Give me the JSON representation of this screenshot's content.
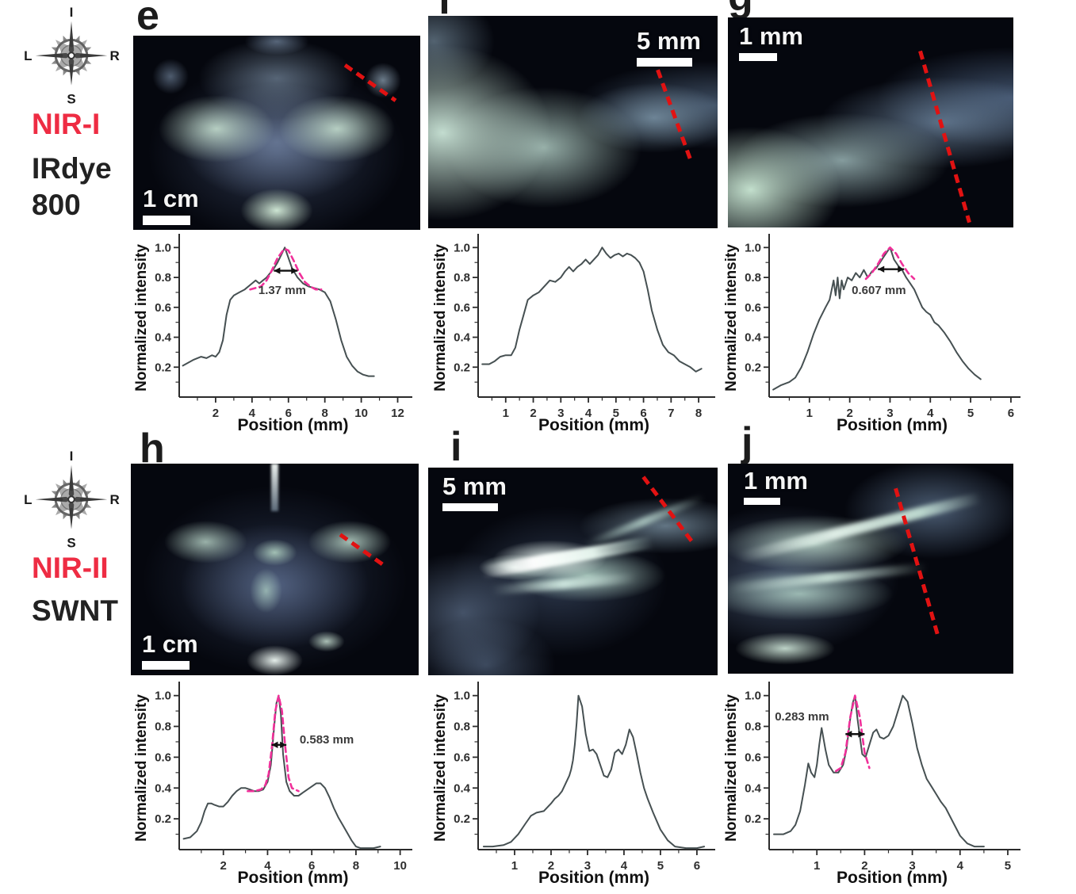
{
  "palette": {
    "nir_red": "#ee2c43",
    "dash_red": "#e11212",
    "fit_pink": "#f0309a",
    "curve_gray": "#465052",
    "axis_black": "#2b2b2b"
  },
  "groups": [
    {
      "id": "nir1",
      "compass": {
        "top": "I",
        "right": "R",
        "bottom": "S",
        "left": "L"
      },
      "modality_label": "NIR-I",
      "probe_label": "IRdye\n800",
      "panels": [
        {
          "letter": "e",
          "scalebar": "1 cm"
        },
        {
          "letter": "f",
          "scalebar": "5 mm"
        },
        {
          "letter": "g",
          "scalebar": "1 mm"
        }
      ]
    },
    {
      "id": "nir2",
      "compass": {
        "top": "I",
        "right": "R",
        "bottom": "S",
        "left": "L"
      },
      "modality_label": "NIR-II",
      "probe_label": "SWNT",
      "panels": [
        {
          "letter": "h",
          "scalebar": "1 cm"
        },
        {
          "letter": "i",
          "scalebar": "5 mm"
        },
        {
          "letter": "j",
          "scalebar": "1 mm"
        }
      ]
    }
  ],
  "chart_data": [
    {
      "id": "plot_e",
      "type": "line",
      "title": "",
      "xlabel": "Position (mm)",
      "ylabel": "Normalized intensity",
      "xlim": [
        0,
        12.5
      ],
      "ylim": [
        0,
        1.06
      ],
      "xticks": [
        2,
        4,
        6,
        8,
        10,
        12
      ],
      "yticks": [
        0.2,
        0.4,
        0.6,
        0.8,
        1.0
      ],
      "grid": false,
      "annotation": {
        "text": "1.37 mm",
        "x": 4.35,
        "y": 0.69,
        "arrow": {
          "x1": 5.2,
          "x2": 6.5,
          "y": 0.845
        }
      },
      "series": [
        {
          "name": "intensity_profile",
          "color": "#465052",
          "width": 2,
          "x": [
            0.2,
            0.8,
            1.2,
            1.5,
            1.8,
            2.0,
            2.2,
            2.4,
            2.6,
            2.8,
            3.0,
            3.3,
            3.6,
            4.0,
            4.2,
            4.4,
            4.6,
            4.8,
            5.0,
            5.2,
            5.4,
            5.6,
            5.8,
            6.0,
            6.2,
            6.5,
            6.8,
            7.1,
            7.4,
            7.7,
            8.0,
            8.3,
            8.6,
            8.9,
            9.2,
            9.5,
            9.8,
            10.1,
            10.4,
            10.7
          ],
          "y": [
            0.21,
            0.25,
            0.27,
            0.26,
            0.28,
            0.27,
            0.3,
            0.38,
            0.55,
            0.65,
            0.68,
            0.7,
            0.72,
            0.76,
            0.78,
            0.76,
            0.78,
            0.8,
            0.83,
            0.86,
            0.9,
            0.95,
            1.0,
            0.93,
            0.86,
            0.8,
            0.76,
            0.74,
            0.73,
            0.72,
            0.7,
            0.64,
            0.52,
            0.38,
            0.27,
            0.21,
            0.17,
            0.15,
            0.14,
            0.14
          ]
        },
        {
          "name": "gaussian_fit",
          "color": "#f0309a",
          "width": 2.6,
          "dashed": true,
          "x": [
            3.9,
            4.2,
            4.5,
            4.8,
            5.1,
            5.4,
            5.7,
            5.82,
            6.0,
            6.3,
            6.6,
            6.9,
            7.2,
            7.5,
            7.8
          ],
          "y": [
            0.72,
            0.73,
            0.74,
            0.78,
            0.85,
            0.93,
            0.98,
            0.99,
            0.98,
            0.91,
            0.83,
            0.77,
            0.74,
            0.72,
            0.72
          ]
        }
      ]
    },
    {
      "id": "plot_f",
      "type": "line",
      "title": "",
      "xlabel": "Position (mm)",
      "ylabel": "Normalized intensity",
      "xlim": [
        0,
        8.4
      ],
      "ylim": [
        0,
        1.06
      ],
      "xticks": [
        1,
        2,
        3,
        4,
        5,
        6,
        7,
        8
      ],
      "yticks": [
        0.2,
        0.4,
        0.6,
        0.8,
        1.0
      ],
      "grid": false,
      "series": [
        {
          "name": "intensity_profile",
          "color": "#465052",
          "width": 2,
          "x": [
            0.15,
            0.4,
            0.6,
            0.8,
            1.0,
            1.2,
            1.35,
            1.5,
            1.65,
            1.8,
            2.0,
            2.2,
            2.4,
            2.6,
            2.8,
            3.0,
            3.15,
            3.3,
            3.45,
            3.6,
            3.75,
            3.9,
            4.05,
            4.2,
            4.35,
            4.5,
            4.65,
            4.8,
            4.95,
            5.1,
            5.25,
            5.4,
            5.55,
            5.7,
            5.85,
            6.0,
            6.15,
            6.3,
            6.5,
            6.7,
            6.9,
            7.1,
            7.3,
            7.5,
            7.7,
            7.9,
            8.1
          ],
          "y": [
            0.22,
            0.22,
            0.24,
            0.27,
            0.28,
            0.28,
            0.33,
            0.45,
            0.55,
            0.65,
            0.68,
            0.7,
            0.74,
            0.78,
            0.77,
            0.8,
            0.84,
            0.87,
            0.84,
            0.87,
            0.89,
            0.92,
            0.89,
            0.92,
            0.95,
            1.0,
            0.96,
            0.93,
            0.95,
            0.96,
            0.94,
            0.96,
            0.95,
            0.93,
            0.9,
            0.84,
            0.72,
            0.58,
            0.45,
            0.35,
            0.3,
            0.28,
            0.24,
            0.22,
            0.2,
            0.17,
            0.19
          ]
        }
      ]
    },
    {
      "id": "plot_g",
      "type": "line",
      "title": "",
      "xlabel": "Position (mm)",
      "ylabel": "Normalized intensity",
      "xlim": [
        0,
        6.1
      ],
      "ylim": [
        0,
        1.06
      ],
      "xticks": [
        1,
        2,
        3,
        4,
        5,
        6
      ],
      "yticks": [
        0.2,
        0.4,
        0.6,
        0.8,
        1.0
      ],
      "grid": false,
      "annotation": {
        "text": "0.607 mm",
        "x": 2.05,
        "y": 0.69,
        "arrow": {
          "x1": 2.7,
          "x2": 3.35,
          "y": 0.855
        }
      },
      "series": [
        {
          "name": "intensity_profile",
          "color": "#465052",
          "width": 2,
          "x": [
            0.1,
            0.3,
            0.5,
            0.65,
            0.8,
            0.95,
            1.1,
            1.25,
            1.4,
            1.5,
            1.6,
            1.65,
            1.7,
            1.75,
            1.8,
            1.85,
            1.95,
            2.05,
            2.15,
            2.25,
            2.35,
            2.45,
            2.55,
            2.65,
            2.75,
            2.85,
            2.95,
            3.0,
            3.1,
            3.2,
            3.3,
            3.4,
            3.5,
            3.6,
            3.7,
            3.8,
            3.9,
            4.0,
            4.1,
            4.2,
            4.35,
            4.5,
            4.65,
            4.8,
            4.95,
            5.1,
            5.25
          ],
          "y": [
            0.05,
            0.08,
            0.1,
            0.13,
            0.2,
            0.3,
            0.42,
            0.52,
            0.6,
            0.65,
            0.78,
            0.68,
            0.8,
            0.66,
            0.78,
            0.72,
            0.8,
            0.78,
            0.83,
            0.8,
            0.85,
            0.8,
            0.84,
            0.86,
            0.9,
            0.94,
            0.98,
            1.0,
            0.92,
            0.88,
            0.85,
            0.8,
            0.76,
            0.72,
            0.66,
            0.6,
            0.57,
            0.55,
            0.5,
            0.48,
            0.43,
            0.37,
            0.3,
            0.24,
            0.19,
            0.15,
            0.12
          ]
        },
        {
          "name": "gaussian_fit",
          "color": "#f0309a",
          "width": 2.6,
          "dashed": true,
          "x": [
            2.4,
            2.55,
            2.7,
            2.85,
            3.0,
            3.15,
            3.3,
            3.45,
            3.6
          ],
          "y": [
            0.79,
            0.83,
            0.89,
            0.96,
            1.0,
            0.96,
            0.89,
            0.83,
            0.79
          ]
        }
      ]
    },
    {
      "id": "plot_h",
      "type": "line",
      "title": "",
      "xlabel": "Position (mm)",
      "ylabel": "Normalized intensity",
      "xlim": [
        0,
        10.3
      ],
      "ylim": [
        0,
        1.06
      ],
      "xticks": [
        2,
        4,
        6,
        8,
        10
      ],
      "yticks": [
        0.2,
        0.4,
        0.6,
        0.8,
        1.0
      ],
      "grid": false,
      "annotation": {
        "text": "0.583 mm",
        "x": 5.45,
        "y": 0.69,
        "arrow": {
          "x1": 4.18,
          "x2": 4.85,
          "y": 0.68
        }
      },
      "series": [
        {
          "name": "intensity_profile",
          "color": "#465052",
          "width": 2,
          "x": [
            0.2,
            0.5,
            0.8,
            1.0,
            1.15,
            1.3,
            1.45,
            1.6,
            1.8,
            2.0,
            2.2,
            2.4,
            2.6,
            2.8,
            3.0,
            3.2,
            3.4,
            3.6,
            3.8,
            4.0,
            4.15,
            4.3,
            4.4,
            4.5,
            4.6,
            4.7,
            4.85,
            5.0,
            5.2,
            5.4,
            5.6,
            5.8,
            6.0,
            6.2,
            6.4,
            6.6,
            6.8,
            7.0,
            7.2,
            7.4,
            7.6,
            7.8,
            8.0,
            8.2,
            8.5,
            8.8,
            9.1
          ],
          "y": [
            0.07,
            0.08,
            0.12,
            0.18,
            0.25,
            0.3,
            0.3,
            0.29,
            0.28,
            0.28,
            0.31,
            0.35,
            0.38,
            0.4,
            0.4,
            0.39,
            0.38,
            0.38,
            0.39,
            0.44,
            0.55,
            0.8,
            0.95,
            1.0,
            0.88,
            0.62,
            0.44,
            0.38,
            0.35,
            0.35,
            0.37,
            0.39,
            0.41,
            0.43,
            0.43,
            0.4,
            0.34,
            0.27,
            0.21,
            0.16,
            0.11,
            0.06,
            0.02,
            0.01,
            0.01,
            0.01,
            0.02
          ]
        },
        {
          "name": "gaussian_fit",
          "color": "#f0309a",
          "width": 2.6,
          "dashed": true,
          "x": [
            3.1,
            3.4,
            3.7,
            3.9,
            4.05,
            4.2,
            4.35,
            4.5,
            4.65,
            4.8,
            4.95,
            5.1,
            5.4
          ],
          "y": [
            0.38,
            0.38,
            0.39,
            0.42,
            0.49,
            0.67,
            0.9,
            1.0,
            0.9,
            0.67,
            0.47,
            0.4,
            0.38
          ]
        }
      ]
    },
    {
      "id": "plot_i",
      "type": "line",
      "title": "",
      "xlabel": "Position (mm)",
      "ylabel": "Normalized intensity",
      "xlim": [
        0,
        6.35
      ],
      "ylim": [
        0,
        1.06
      ],
      "xticks": [
        1,
        2,
        3,
        4,
        5,
        6
      ],
      "yticks": [
        0.2,
        0.4,
        0.6,
        0.8,
        1.0
      ],
      "grid": false,
      "series": [
        {
          "name": "intensity_profile",
          "color": "#465052",
          "width": 2,
          "x": [
            0.15,
            0.4,
            0.7,
            0.9,
            1.1,
            1.3,
            1.45,
            1.6,
            1.8,
            2.0,
            2.1,
            2.2,
            2.3,
            2.4,
            2.5,
            2.55,
            2.6,
            2.65,
            2.7,
            2.75,
            2.85,
            2.95,
            3.05,
            3.15,
            3.25,
            3.35,
            3.45,
            3.55,
            3.65,
            3.75,
            3.85,
            3.95,
            4.05,
            4.15,
            4.25,
            4.35,
            4.45,
            4.55,
            4.65,
            4.8,
            5.0,
            5.2,
            5.4,
            5.7,
            6.0,
            6.2
          ],
          "y": [
            0.02,
            0.02,
            0.03,
            0.05,
            0.1,
            0.17,
            0.22,
            0.24,
            0.25,
            0.3,
            0.33,
            0.35,
            0.38,
            0.43,
            0.48,
            0.52,
            0.58,
            0.68,
            0.82,
            1.0,
            0.93,
            0.75,
            0.64,
            0.65,
            0.62,
            0.55,
            0.48,
            0.47,
            0.52,
            0.63,
            0.65,
            0.62,
            0.68,
            0.78,
            0.73,
            0.62,
            0.5,
            0.4,
            0.33,
            0.24,
            0.13,
            0.06,
            0.02,
            0.01,
            0.01,
            0.02
          ]
        }
      ]
    },
    {
      "id": "plot_j",
      "type": "line",
      "title": "",
      "xlabel": "Position (mm)",
      "ylabel": "Normalized intensity",
      "xlim": [
        0,
        5.15
      ],
      "ylim": [
        0,
        1.06
      ],
      "xticks": [
        1,
        2,
        3,
        4,
        5
      ],
      "yticks": [
        0.2,
        0.4,
        0.6,
        0.8,
        1.0
      ],
      "grid": false,
      "annotation": {
        "text": "0.283 mm",
        "x": 0.12,
        "y": 0.84,
        "arrow": {
          "x1": 1.6,
          "x2": 2.0,
          "y": 0.75
        }
      },
      "series": [
        {
          "name": "intensity_profile",
          "color": "#465052",
          "width": 2,
          "x": [
            0.1,
            0.3,
            0.45,
            0.55,
            0.65,
            0.75,
            0.82,
            0.88,
            0.95,
            1.0,
            1.05,
            1.1,
            1.18,
            1.25,
            1.35,
            1.45,
            1.55,
            1.62,
            1.7,
            1.75,
            1.8,
            1.85,
            1.95,
            2.02,
            2.1,
            2.18,
            2.25,
            2.32,
            2.4,
            2.5,
            2.6,
            2.7,
            2.8,
            2.9,
            3.0,
            3.1,
            3.2,
            3.3,
            3.4,
            3.5,
            3.6,
            3.7,
            3.85,
            4.0,
            4.15,
            4.3,
            4.5
          ],
          "y": [
            0.1,
            0.1,
            0.12,
            0.16,
            0.25,
            0.42,
            0.56,
            0.5,
            0.47,
            0.55,
            0.68,
            0.79,
            0.65,
            0.55,
            0.5,
            0.5,
            0.55,
            0.65,
            0.85,
            0.95,
            1.0,
            0.85,
            0.62,
            0.6,
            0.68,
            0.76,
            0.78,
            0.73,
            0.72,
            0.74,
            0.8,
            0.9,
            1.0,
            0.96,
            0.82,
            0.66,
            0.55,
            0.46,
            0.41,
            0.36,
            0.31,
            0.27,
            0.18,
            0.09,
            0.04,
            0.02,
            0.02
          ]
        },
        {
          "name": "gaussian_fit",
          "color": "#f0309a",
          "width": 2.6,
          "dashed": true,
          "x": [
            1.4,
            1.5,
            1.6,
            1.7,
            1.8,
            1.9,
            2.0,
            2.1
          ],
          "y": [
            0.51,
            0.53,
            0.63,
            0.86,
            1.0,
            0.86,
            0.63,
            0.53
          ]
        }
      ]
    }
  ]
}
